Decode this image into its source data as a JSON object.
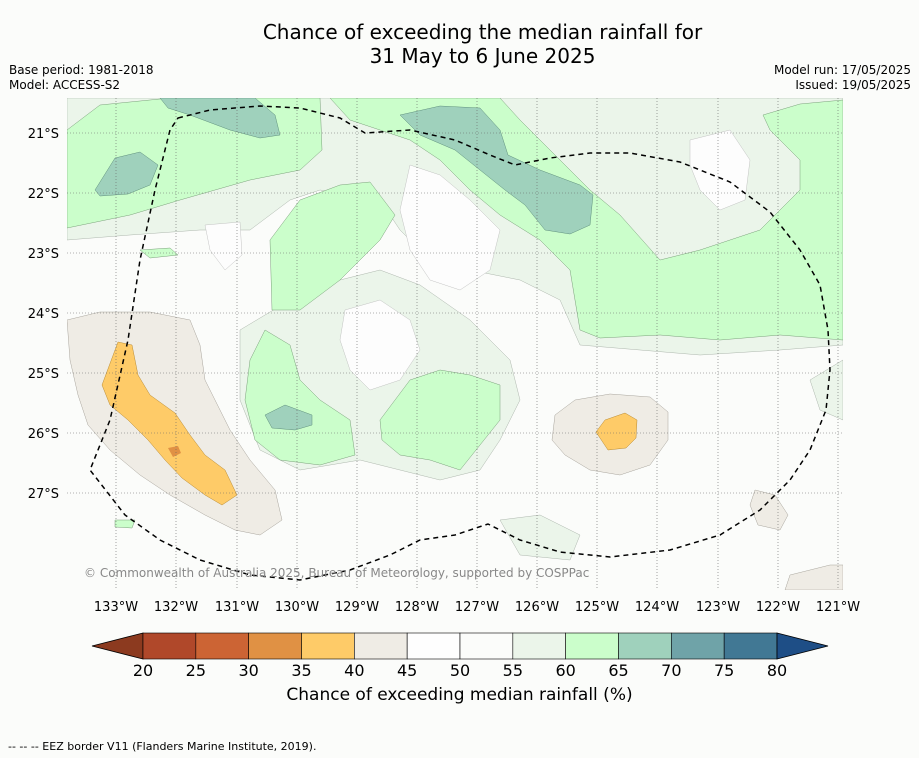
{
  "title": {
    "line1": "Chance of exceeding the median rainfall for",
    "line2": "31 May to 6 June 2025"
  },
  "meta": {
    "base_period": "Base period: 1981-2018",
    "model": "Model: ACCESS-S2",
    "model_run": "Model run: 17/05/2025",
    "issued": "Issued: 19/05/2025"
  },
  "map": {
    "lat_labels": [
      "21°S",
      "22°S",
      "23°S",
      "24°S",
      "25°S",
      "26°S",
      "27°S"
    ],
    "lon_labels": [
      "133°W",
      "132°W",
      "131°W",
      "130°W",
      "129°W",
      "128°W",
      "127°W",
      "126°W",
      "125°W",
      "124°W",
      "123°W",
      "122°W",
      "121°W"
    ],
    "copyright": "© Commonwealth of Australia 2025, Bureau of Meteorology, supported by COSPPac",
    "fill_colors": {
      "below_40": "#fecb68",
      "below_35": "#e09144",
      "40_45": "#efece5",
      "45_50": "#fefefe",
      "50_55": "#fbfcfa",
      "55_60": "#ebf5ea",
      "60_65": "#cbfecb",
      "65_70": "#9fd1bc"
    }
  },
  "colorbar": {
    "title": "Chance of exceeding median rainfall (%)",
    "ticks": [
      "20",
      "25",
      "30",
      "35",
      "40",
      "45",
      "50",
      "55",
      "60",
      "65",
      "70",
      "75",
      "80"
    ],
    "colors": [
      "#8c3a1f",
      "#b0482a",
      "#cc6434",
      "#e09144",
      "#fecb68",
      "#efece5",
      "#fefefe",
      "#fbfcfa",
      "#ebf5ea",
      "#cbfecb",
      "#9fd1bc",
      "#6fa3a8",
      "#417894",
      "#1e4e86"
    ]
  },
  "footer": {
    "eez_legend": "--  --  -- EEZ border V11 (Flanders Marine Institute, 2019)."
  }
}
